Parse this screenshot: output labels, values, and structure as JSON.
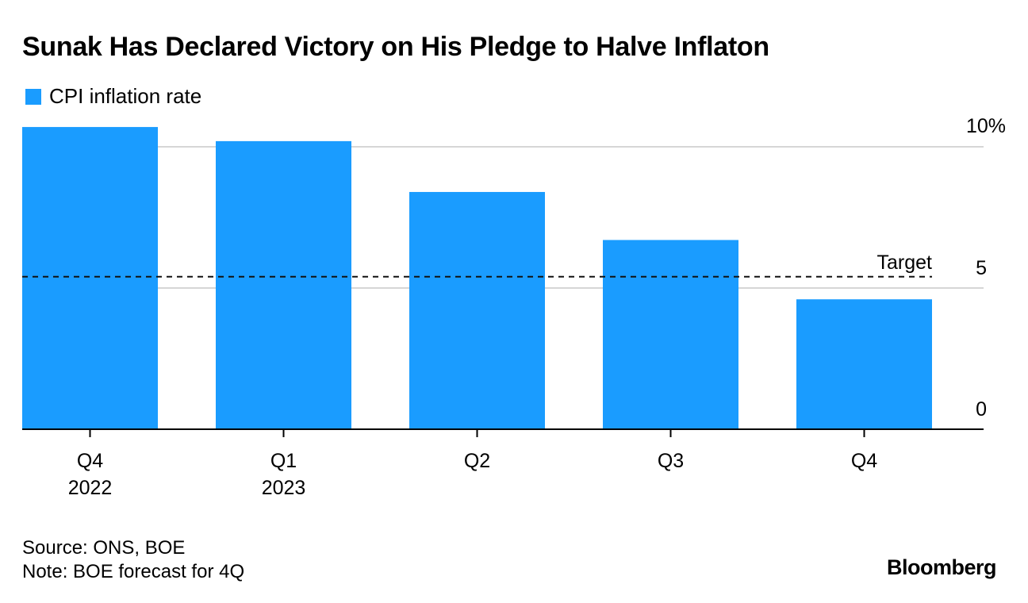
{
  "header": {
    "title": "Sunak Has Declared Victory on His Pledge to Halve Inflaton"
  },
  "legend": {
    "label": "CPI inflation rate",
    "color": "#1a9cff"
  },
  "chart_data": {
    "type": "bar",
    "title": "Sunak Has Declared Victory on His Pledge to Halve Inflaton",
    "categories": [
      "Q4 2022",
      "Q1 2023",
      "Q2",
      "Q3",
      "Q4"
    ],
    "category_labels": [
      [
        "Q4",
        "2022"
      ],
      [
        "Q1",
        "2023"
      ],
      [
        "Q2"
      ],
      [
        "Q3"
      ],
      [
        "Q4"
      ]
    ],
    "series": [
      {
        "name": "CPI inflation rate",
        "values": [
          10.7,
          10.2,
          8.4,
          6.7,
          4.6
        ],
        "color": "#1a9cff"
      }
    ],
    "ylim": [
      0,
      10
    ],
    "y_ticks": [
      0,
      5,
      10
    ],
    "y_tick_labels": [
      "0",
      "5",
      "10%"
    ],
    "reference_line": {
      "label": "Target",
      "value": 5.4,
      "style": "dashed"
    },
    "axis_side": "right",
    "grid": true
  },
  "footer": {
    "source": "Source: ONS, BOE",
    "note": "Note: BOE forecast for 4Q",
    "brand": "Bloomberg"
  }
}
